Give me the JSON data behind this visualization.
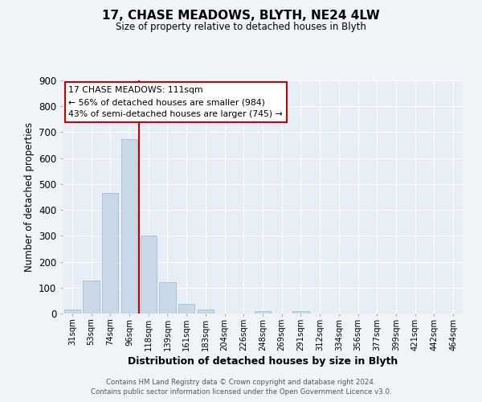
{
  "title": "17, CHASE MEADOWS, BLYTH, NE24 4LW",
  "subtitle": "Size of property relative to detached houses in Blyth",
  "xlabel": "Distribution of detached houses by size in Blyth",
  "ylabel": "Number of detached properties",
  "bar_labels": [
    "31sqm",
    "53sqm",
    "74sqm",
    "96sqm",
    "118sqm",
    "139sqm",
    "161sqm",
    "183sqm",
    "204sqm",
    "226sqm",
    "248sqm",
    "269sqm",
    "291sqm",
    "312sqm",
    "334sqm",
    "356sqm",
    "377sqm",
    "399sqm",
    "421sqm",
    "442sqm",
    "464sqm"
  ],
  "bar_values": [
    15,
    127,
    465,
    672,
    302,
    120,
    37,
    14,
    0,
    0,
    8,
    0,
    8,
    0,
    0,
    0,
    0,
    0,
    0,
    0,
    0
  ],
  "bar_color": "#c8d8e8",
  "bar_edgecolor": "#a8bece",
  "vline_color": "#cc0000",
  "vline_x_index": 4,
  "ylim": [
    0,
    900
  ],
  "yticks": [
    0,
    100,
    200,
    300,
    400,
    500,
    600,
    700,
    800,
    900
  ],
  "annotation_title": "17 CHASE MEADOWS: 111sqm",
  "annotation_line1": "← 56% of detached houses are smaller (984)",
  "annotation_line2": "43% of semi-detached houses are larger (745) →",
  "annotation_box_facecolor": "#ffffff",
  "annotation_box_edgecolor": "#cc0000",
  "footer_line1": "Contains HM Land Registry data © Crown copyright and database right 2024.",
  "footer_line2": "Contains public sector information licensed under the Open Government Licence v3.0.",
  "fig_facecolor": "#f0f4f8",
  "plot_facecolor": "#e8eef5"
}
